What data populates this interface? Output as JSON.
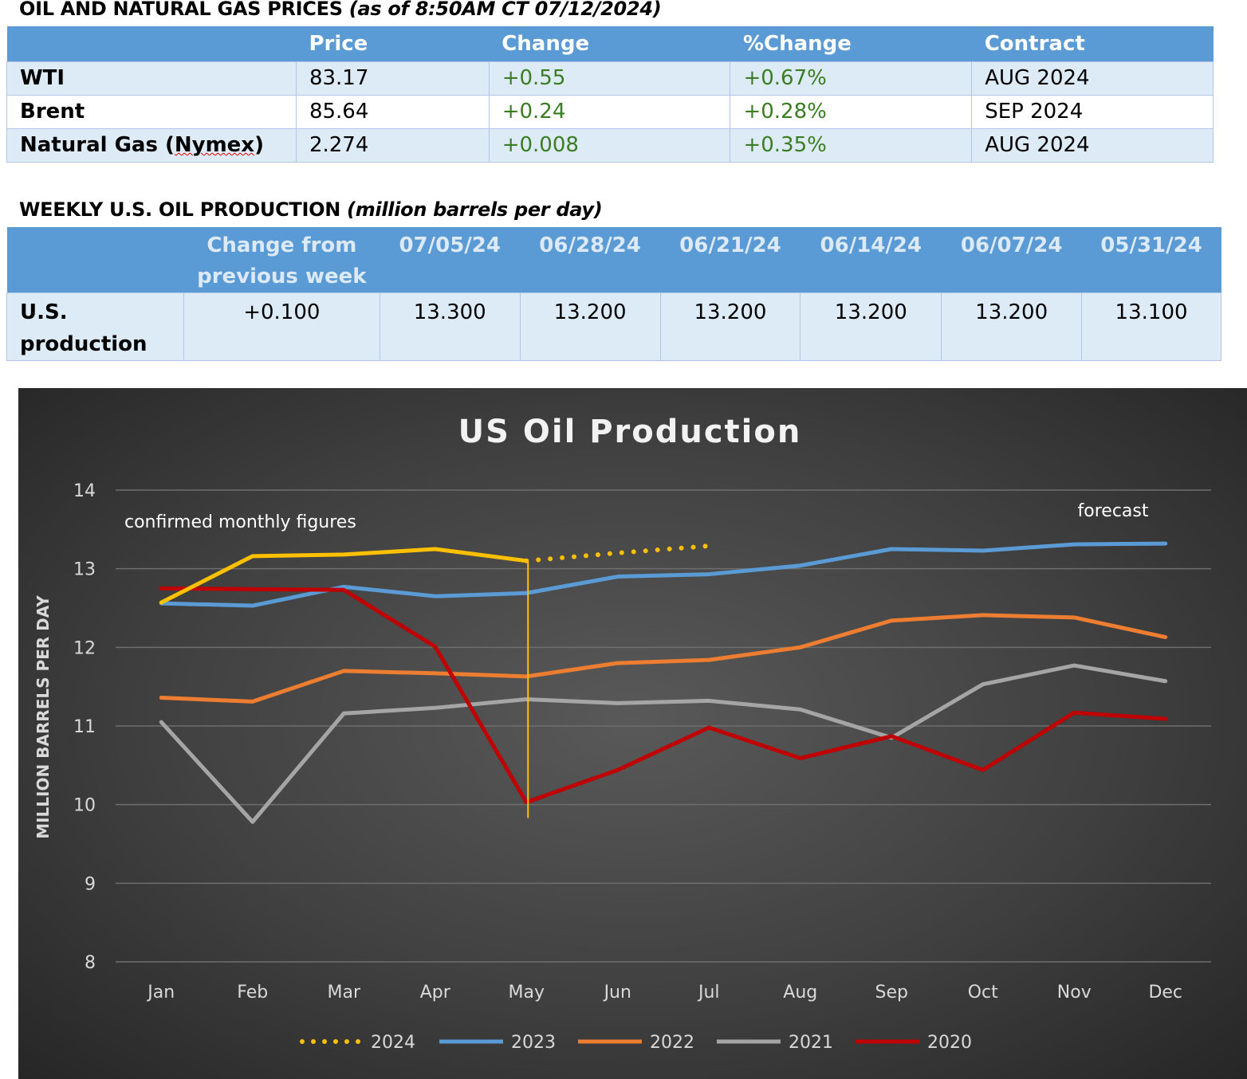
{
  "prices_section": {
    "title": "OIL AND NATURAL GAS PRICES",
    "subtitle": "(as of 8:50AM CT 07/12/2024)",
    "columns": [
      "",
      "Price",
      "Change",
      "%Change",
      "Contract"
    ],
    "rows": [
      {
        "name": "WTI",
        "price": "83.17",
        "change": "+0.55",
        "pct_change": "+0.67%",
        "contract": "AUG 2024"
      },
      {
        "name": "Brent",
        "price": "85.64",
        "change": "+0.24",
        "pct_change": "+0.28%",
        "contract": "SEP 2024"
      },
      {
        "name_prefix": "Natural Gas (",
        "name_flagged": "Nymex",
        "name_suffix": ")",
        "price": "2.274",
        "change": "+0.008",
        "pct_change": "+0.35%",
        "contract": "AUG 2024"
      }
    ],
    "positive_color": "#3a7d22"
  },
  "production_section": {
    "title": "WEEKLY U.S. OIL PRODUCTION",
    "subtitle": "(million barrels per day)",
    "change_header_line1": "Change from",
    "change_header_line2": "previous week",
    "date_headers": [
      "07/05/24",
      "06/28/24",
      "06/21/24",
      "06/14/24",
      "06/07/24",
      "05/31/24"
    ],
    "row_label_line1": "U.S.",
    "row_label_line2": "production",
    "change_value": "+0.100",
    "values": [
      "13.300",
      "13.200",
      "13.200",
      "13.200",
      "13.200",
      "13.100"
    ]
  },
  "chart_data": {
    "type": "line",
    "title": "US Oil Production",
    "ylabel": "MILLION BARRELS PER DAY",
    "xlabel": "",
    "categories": [
      "Jan",
      "Feb",
      "Mar",
      "Apr",
      "May",
      "Jun",
      "Jul",
      "Aug",
      "Sep",
      "Oct",
      "Nov",
      "Dec"
    ],
    "ylim": [
      8,
      14
    ],
    "yticks": [
      8,
      9,
      10,
      11,
      12,
      13,
      14
    ],
    "grid": true,
    "legend_position": "bottom",
    "series": [
      {
        "name": "2024",
        "color": "#ffc000",
        "solid_values": [
          12.57,
          13.16,
          13.18,
          13.25,
          13.1
        ],
        "dotted_values": [
          null,
          null,
          null,
          null,
          13.1,
          13.2,
          13.29,
          null,
          null,
          null,
          null,
          null
        ]
      },
      {
        "name": "2023",
        "color": "#5b9bd5",
        "values": [
          12.56,
          12.53,
          12.77,
          12.65,
          12.69,
          12.9,
          12.93,
          13.04,
          13.25,
          13.23,
          13.31,
          13.32
        ]
      },
      {
        "name": "2022",
        "color": "#ed7d31",
        "values": [
          11.36,
          11.31,
          11.7,
          11.67,
          11.63,
          11.8,
          11.84,
          12.0,
          12.34,
          12.41,
          12.38,
          12.13
        ]
      },
      {
        "name": "2021",
        "color": "#a5a5a5",
        "values": [
          11.05,
          9.78,
          11.16,
          11.23,
          11.34,
          11.29,
          11.32,
          11.21,
          10.85,
          11.53,
          11.77,
          11.57
        ]
      },
      {
        "name": "2020",
        "color": "#c00000",
        "values": [
          12.75,
          12.74,
          12.73,
          12.01,
          10.03,
          10.44,
          10.98,
          10.59,
          10.87,
          10.44,
          11.17,
          11.09
        ]
      }
    ],
    "annotations": [
      {
        "text": "confirmed monthly figures"
      },
      {
        "text": "forecast"
      }
    ],
    "divider_month": "May",
    "divider_color": "#ffc000"
  }
}
